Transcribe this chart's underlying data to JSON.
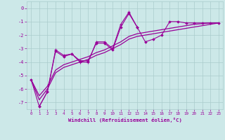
{
  "color": "#990099",
  "bg_color": "#cce8e8",
  "grid_color": "#aacccc",
  "xlabel": "Windchill (Refroidissement éolien,°C)",
  "ylim": [
    -7.5,
    0.5
  ],
  "xlim": [
    -0.5,
    23.5
  ],
  "yticks": [
    0,
    -1,
    -2,
    -3,
    -4,
    -5,
    -6,
    -7
  ],
  "xticks": [
    0,
    1,
    2,
    3,
    4,
    5,
    6,
    7,
    8,
    9,
    10,
    11,
    12,
    13,
    14,
    15,
    16,
    17,
    18,
    19,
    20,
    21,
    22,
    23
  ],
  "zigzag_x": [
    1,
    2,
    3,
    4,
    5,
    6,
    7,
    8,
    9,
    10,
    11,
    12,
    13
  ],
  "zigzag_y": [
    -7.3,
    -6.2,
    -3.1,
    -3.5,
    -3.4,
    -4.0,
    -4.0,
    -2.5,
    -2.5,
    -3.0,
    -1.2,
    -0.3,
    -1.4
  ],
  "full_line_x": [
    0,
    1,
    2,
    3,
    4,
    5,
    6,
    7,
    8,
    9,
    10,
    11,
    12,
    13,
    14,
    15,
    16,
    17,
    18,
    19,
    20,
    21,
    22,
    23
  ],
  "full_line_y": [
    -5.3,
    -7.3,
    -6.2,
    -3.2,
    -3.6,
    -3.4,
    -3.9,
    -3.9,
    -2.6,
    -2.6,
    -3.1,
    -1.4,
    -0.4,
    -1.4,
    -2.5,
    -2.3,
    -2.0,
    -1.0,
    -1.0,
    -1.1,
    -1.1,
    -1.1,
    -1.1,
    -1.1
  ],
  "trend1_x": [
    0,
    1,
    2,
    3,
    4,
    5,
    6,
    7,
    8,
    9,
    10,
    11,
    12,
    13,
    14,
    15,
    16,
    17,
    18,
    19,
    20,
    21,
    22,
    23
  ],
  "trend1_y": [
    -5.3,
    -6.5,
    -5.8,
    -4.6,
    -4.2,
    -4.0,
    -3.8,
    -3.6,
    -3.3,
    -3.1,
    -2.8,
    -2.5,
    -2.1,
    -1.9,
    -1.8,
    -1.7,
    -1.6,
    -1.5,
    -1.4,
    -1.3,
    -1.2,
    -1.15,
    -1.1,
    -1.1
  ],
  "trend2_x": [
    0,
    1,
    2,
    3,
    4,
    5,
    6,
    7,
    8,
    9,
    10,
    11,
    12,
    13,
    14,
    15,
    16,
    17,
    18,
    19,
    20,
    21,
    22,
    23
  ],
  "trend2_y": [
    -5.3,
    -6.8,
    -6.0,
    -4.8,
    -4.4,
    -4.2,
    -4.0,
    -3.8,
    -3.5,
    -3.3,
    -3.0,
    -2.7,
    -2.3,
    -2.1,
    -2.0,
    -1.9,
    -1.8,
    -1.7,
    -1.6,
    -1.5,
    -1.4,
    -1.3,
    -1.2,
    -1.1
  ]
}
